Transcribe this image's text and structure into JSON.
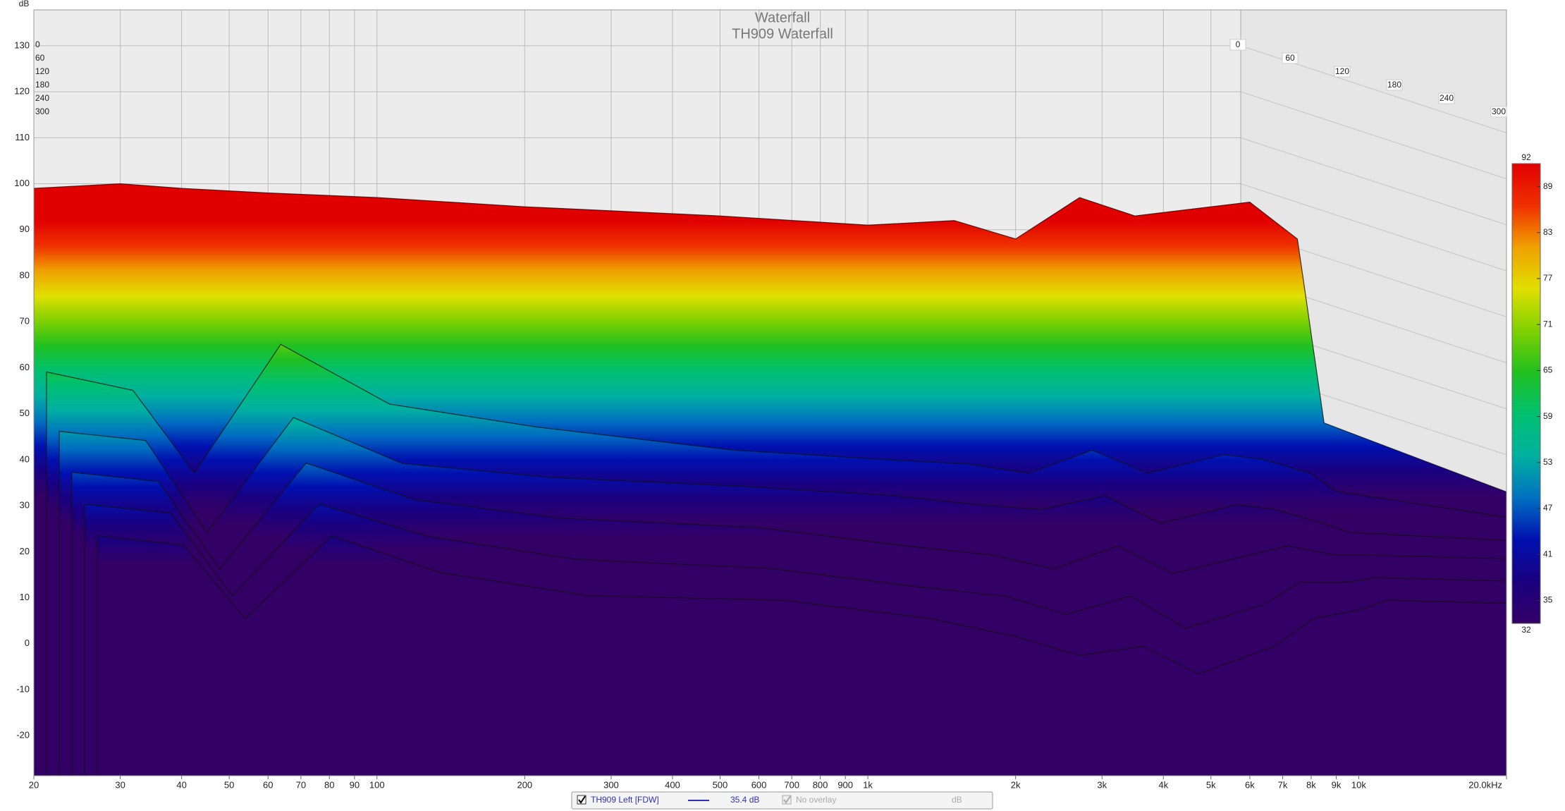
{
  "chart_data": {
    "type": "waterfall",
    "title": "Waterfall",
    "subtitle": "TH909 Waterfall",
    "y_label": "dB",
    "time_span": "300ms",
    "log_x": true,
    "grid": true,
    "xlim": [
      20,
      20000
    ],
    "ylim": [
      -28.7,
      137.8
    ],
    "yticks": [
      -20,
      -10,
      0,
      10,
      20,
      30,
      40,
      50,
      60,
      70,
      80,
      90,
      100,
      110,
      120,
      130
    ],
    "xticks": [
      20,
      30,
      40,
      50,
      60,
      70,
      80,
      90,
      100,
      200,
      300,
      400,
      500,
      600,
      700,
      800,
      900,
      {
        "value": 1000,
        "label": "1k"
      },
      {
        "value": 2000,
        "label": "2k"
      },
      {
        "value": 3000,
        "label": "3k"
      },
      {
        "value": 4000,
        "label": "4k"
      },
      {
        "value": 5000,
        "label": "5k"
      },
      {
        "value": 6000,
        "label": "6k"
      },
      {
        "value": 7000,
        "label": "7k"
      },
      {
        "value": 8000,
        "label": "8k"
      },
      {
        "value": 9000,
        "label": "9k"
      },
      {
        "value": 10000,
        "label": "10k"
      },
      {
        "value": 20000,
        "label": "20.0kHz"
      }
    ],
    "tticks": [
      0,
      60,
      120,
      180,
      240,
      300
    ],
    "x": [
      20,
      30,
      40,
      60,
      100,
      200,
      500,
      1000,
      1500,
      2000,
      2700,
      3500,
      5000,
      6000,
      7500,
      8500,
      20000
    ],
    "slices": [
      {
        "time": 0,
        "values": [
          99,
          100,
          99,
          98,
          97,
          95,
          93,
          91,
          92,
          88,
          97,
          93,
          95,
          96,
          88,
          48,
          33
        ]
      },
      {
        "time": 60,
        "values": [
          62,
          58,
          40,
          68,
          55,
          50,
          45,
          43,
          42,
          40,
          45,
          40,
          44,
          43,
          40,
          36,
          30
        ]
      },
      {
        "time": 120,
        "values": [
          52,
          50,
          30,
          55,
          45,
          42,
          40,
          38,
          36,
          35,
          38,
          32,
          36,
          35,
          32,
          30,
          28
        ]
      },
      {
        "time": 180,
        "values": [
          46,
          44,
          25,
          48,
          40,
          36,
          34,
          30,
          28,
          25,
          30,
          24,
          28,
          30,
          28,
          28,
          27
        ]
      },
      {
        "time": 240,
        "values": [
          42,
          40,
          22,
          42,
          35,
          30,
          28,
          24,
          22,
          18,
          22,
          15,
          20,
          25,
          25,
          26,
          25
        ]
      },
      {
        "time": 300,
        "values": [
          38,
          36,
          20,
          38,
          30,
          25,
          24,
          20,
          16,
          12,
          14,
          8,
          14,
          20,
          22,
          24,
          23
        ]
      }
    ],
    "clim": [
      32,
      92
    ],
    "cticks": [
      35,
      41,
      47,
      53,
      59,
      65,
      71,
      77,
      83,
      89
    ],
    "colormap": [
      "#330066",
      "#1a0080",
      "#0010b0",
      "#0070c0",
      "#00b0a0",
      "#00c070",
      "#20c020",
      "#80d000",
      "#e0e000",
      "#f0a000",
      "#f03000",
      "#e00000"
    ],
    "legend": {
      "checked": true,
      "name": "TH909 Left [FDW]",
      "color": "#3030c0",
      "level": "35.4 dB",
      "overlay": "No overlay",
      "overlay_unit": "dB"
    }
  }
}
